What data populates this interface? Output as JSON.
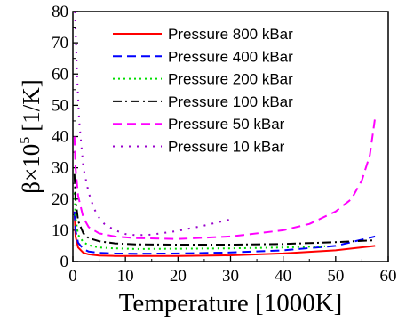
{
  "chart_data": {
    "type": "line",
    "xlabel": "Temperature [1000K]",
    "ylabel_base": "β×10",
    "ylabel_exp": "5",
    "ylabel_unit": "[1/K]",
    "xlim": [
      0,
      60
    ],
    "ylim": [
      0,
      80
    ],
    "x_ticks": [
      0,
      10,
      20,
      30,
      40,
      50,
      60
    ],
    "y_ticks": [
      0,
      10,
      20,
      30,
      40,
      50,
      60,
      70,
      80
    ],
    "grid": false,
    "legend_position": "top-right",
    "series": [
      {
        "name": "Pressure 800 kBar",
        "color": "#ff0000",
        "dash": "solid",
        "x": [
          0.3,
          0.5,
          1,
          2,
          3,
          5,
          8,
          12,
          20,
          30,
          40,
          50,
          57.5
        ],
        "y": [
          16,
          8,
          4.5,
          2.8,
          2.3,
          1.9,
          1.8,
          1.8,
          1.8,
          2.0,
          2.6,
          3.6,
          5.0
        ]
      },
      {
        "name": "Pressure 400 kBar",
        "color": "#0000ff",
        "dash": "dashed",
        "x": [
          0.3,
          0.5,
          1,
          2,
          3,
          5,
          8,
          12,
          20,
          30,
          40,
          50,
          57.5
        ],
        "y": [
          16,
          10,
          6,
          4.0,
          3.2,
          2.8,
          2.6,
          2.5,
          2.6,
          2.9,
          3.6,
          5.0,
          8.0
        ]
      },
      {
        "name": "Pressure 200 kBar",
        "color": "#00dd00",
        "dash": "dotted",
        "x": [
          0.3,
          0.5,
          1,
          2,
          3,
          5,
          8,
          12,
          20,
          30,
          40,
          48
        ],
        "y": [
          22,
          14,
          8.5,
          6.2,
          5.2,
          4.5,
          4.2,
          4.0,
          4.1,
          4.2,
          4.5,
          4.9
        ]
      },
      {
        "name": "Pressure 100 kBar",
        "color": "#000000",
        "dash": "dashdot",
        "x": [
          0.3,
          0.5,
          1,
          2,
          3,
          5,
          8,
          12,
          20,
          30,
          40,
          50,
          57.5
        ],
        "y": [
          28,
          20,
          13,
          9,
          7.5,
          6.5,
          5.8,
          5.5,
          5.4,
          5.4,
          5.6,
          6.2,
          6.8
        ]
      },
      {
        "name": "Pressure 50 kBar",
        "color": "#ff00ff",
        "dash": "dashed",
        "x": [
          0.3,
          0.5,
          1,
          2,
          3,
          5,
          8,
          12,
          20,
          30,
          40,
          45,
          50,
          53,
          55,
          56.5,
          57.5
        ],
        "y": [
          40,
          30,
          21,
          14,
          11,
          9,
          8,
          7.5,
          7.2,
          8,
          10,
          12,
          16,
          20,
          26,
          34,
          46
        ]
      },
      {
        "name": "Pressure 10 kBar",
        "color": "#9900cc",
        "dash": "sparse-dotted",
        "x": [
          0.4,
          0.8,
          1.2,
          2,
          3,
          4,
          5,
          6,
          8,
          10,
          12,
          15,
          20,
          25,
          30
        ],
        "y": [
          80,
          60,
          45,
          30,
          22,
          17,
          14,
          12,
          10,
          8.8,
          8.4,
          8.6,
          9.8,
          11.5,
          13.5
        ]
      }
    ]
  }
}
